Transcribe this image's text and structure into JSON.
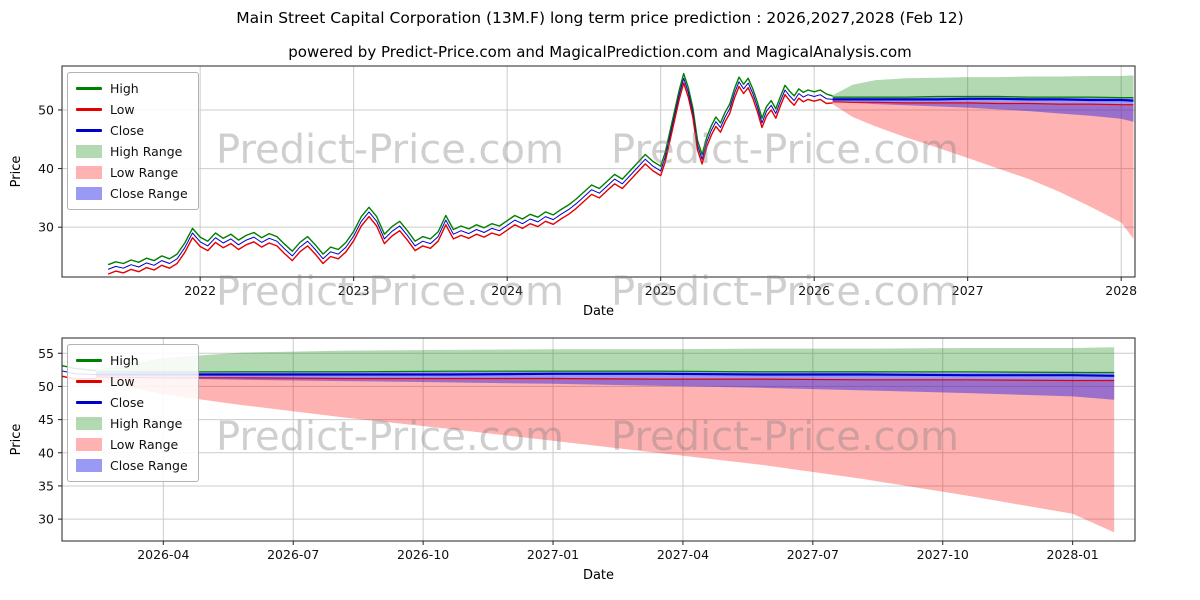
{
  "title": "Main Street Capital Corporation (13M.F) long term price prediction : 2026,2027,2028 (Feb 12)",
  "subtitle": "powered by Predict-Price.com and MagicalPrediction.com and MagicalAnalysis.com",
  "watermark": "Predict-Price.com",
  "colors": {
    "high": "#007f00",
    "low": "#e50000",
    "close": "#0000cd",
    "high_range": "rgba(0,128,0,0.3)",
    "low_range": "rgba(255,0,0,0.3)",
    "close_range": "rgba(30,30,230,0.45)",
    "grid": "#cccccc",
    "axis": "#222222"
  },
  "legend": {
    "items": [
      {
        "label": "High",
        "swatch": "line",
        "color": "#007f00"
      },
      {
        "label": "Low",
        "swatch": "line",
        "color": "#e50000"
      },
      {
        "label": "Close",
        "swatch": "line",
        "color": "#0000cd"
      },
      {
        "label": "High Range",
        "swatch": "patch",
        "color": "rgba(0,128,0,0.3)"
      },
      {
        "label": "Low Range",
        "swatch": "patch",
        "color": "rgba(255,0,0,0.3)"
      },
      {
        "label": "Close Range",
        "swatch": "patch",
        "color": "rgba(30,30,230,0.45)"
      }
    ]
  },
  "chart_data": [
    {
      "type": "line",
      "title": "Historical daily High/Low/Close 2021-2026 plus predicted ranges to 2028",
      "xlabel": "Date",
      "ylabel": "Price",
      "xlim": [
        2021.1,
        2028.09
      ],
      "ylim": [
        21.5,
        57.5
      ],
      "x_ticks": [
        {
          "t": 2022,
          "label": "2022"
        },
        {
          "t": 2023,
          "label": "2023"
        },
        {
          "t": 2024,
          "label": "2024"
        },
        {
          "t": 2025,
          "label": "2025"
        },
        {
          "t": 2026,
          "label": "2026"
        },
        {
          "t": 2027,
          "label": "2027"
        },
        {
          "t": 2028,
          "label": "2028"
        }
      ],
      "y_ticks": [
        30,
        40,
        50
      ],
      "history": {
        "columns": [
          "t",
          "high",
          "low",
          "close"
        ],
        "points": [
          [
            2021.4,
            23.6,
            22.0,
            22.8
          ],
          [
            2021.45,
            24.1,
            22.5,
            23.3
          ],
          [
            2021.5,
            23.8,
            22.2,
            23.0
          ],
          [
            2021.55,
            24.4,
            22.8,
            23.6
          ],
          [
            2021.6,
            24.0,
            22.4,
            23.2
          ],
          [
            2021.65,
            24.7,
            23.1,
            23.9
          ],
          [
            2021.7,
            24.3,
            22.7,
            23.5
          ],
          [
            2021.75,
            25.1,
            23.5,
            24.3
          ],
          [
            2021.8,
            24.6,
            23.0,
            23.8
          ],
          [
            2021.85,
            25.4,
            23.8,
            24.6
          ],
          [
            2021.9,
            27.3,
            25.7,
            26.5
          ],
          [
            2021.95,
            29.8,
            28.2,
            29.0
          ],
          [
            2022.0,
            28.3,
            26.7,
            27.5
          ],
          [
            2022.05,
            27.6,
            26.0,
            26.8
          ],
          [
            2022.1,
            29.0,
            27.4,
            28.2
          ],
          [
            2022.15,
            28.1,
            26.5,
            27.3
          ],
          [
            2022.2,
            28.8,
            27.2,
            28.0
          ],
          [
            2022.25,
            27.8,
            26.2,
            27.0
          ],
          [
            2022.3,
            28.6,
            27.0,
            27.8
          ],
          [
            2022.35,
            29.1,
            27.5,
            28.3
          ],
          [
            2022.4,
            28.2,
            26.6,
            27.4
          ],
          [
            2022.45,
            28.9,
            27.3,
            28.1
          ],
          [
            2022.5,
            28.4,
            26.8,
            27.6
          ],
          [
            2022.55,
            27.1,
            25.5,
            26.3
          ],
          [
            2022.6,
            25.9,
            24.3,
            25.1
          ],
          [
            2022.65,
            27.4,
            25.8,
            26.6
          ],
          [
            2022.7,
            28.4,
            26.8,
            27.6
          ],
          [
            2022.75,
            27.0,
            25.4,
            26.2
          ],
          [
            2022.8,
            25.4,
            23.8,
            24.6
          ],
          [
            2022.85,
            26.6,
            25.0,
            25.8
          ],
          [
            2022.9,
            26.2,
            24.6,
            25.4
          ],
          [
            2022.95,
            27.4,
            25.8,
            26.6
          ],
          [
            2023.0,
            29.3,
            27.7,
            28.5
          ],
          [
            2023.05,
            31.8,
            30.2,
            31.0
          ],
          [
            2023.1,
            33.4,
            31.8,
            32.6
          ],
          [
            2023.15,
            31.8,
            30.2,
            31.0
          ],
          [
            2023.2,
            28.8,
            27.2,
            28.0
          ],
          [
            2023.25,
            30.1,
            28.5,
            29.3
          ],
          [
            2023.3,
            31.0,
            29.4,
            30.2
          ],
          [
            2023.35,
            29.4,
            27.8,
            28.6
          ],
          [
            2023.4,
            27.6,
            26.0,
            26.8
          ],
          [
            2023.45,
            28.4,
            26.8,
            27.6
          ],
          [
            2023.5,
            28.0,
            26.4,
            27.2
          ],
          [
            2023.55,
            29.2,
            27.6,
            28.4
          ],
          [
            2023.6,
            32.0,
            30.4,
            31.2
          ],
          [
            2023.65,
            29.6,
            28.0,
            28.8
          ],
          [
            2023.7,
            30.2,
            28.6,
            29.4
          ],
          [
            2023.75,
            29.7,
            28.1,
            28.9
          ],
          [
            2023.8,
            30.4,
            28.8,
            29.6
          ],
          [
            2023.85,
            29.9,
            28.3,
            29.1
          ],
          [
            2023.9,
            30.6,
            29.0,
            29.8
          ],
          [
            2023.95,
            30.2,
            28.6,
            29.4
          ],
          [
            2024.0,
            31.1,
            29.5,
            30.3
          ],
          [
            2024.05,
            32.0,
            30.4,
            31.2
          ],
          [
            2024.1,
            31.4,
            29.8,
            30.6
          ],
          [
            2024.15,
            32.2,
            30.6,
            31.4
          ],
          [
            2024.2,
            31.7,
            30.1,
            30.9
          ],
          [
            2024.25,
            32.6,
            31.0,
            31.8
          ],
          [
            2024.3,
            32.1,
            30.5,
            31.3
          ],
          [
            2024.35,
            33.0,
            31.4,
            32.2
          ],
          [
            2024.4,
            33.8,
            32.2,
            33.0
          ],
          [
            2024.45,
            34.8,
            33.2,
            34.0
          ],
          [
            2024.5,
            36.0,
            34.4,
            35.2
          ],
          [
            2024.55,
            37.2,
            35.6,
            36.4
          ],
          [
            2024.6,
            36.6,
            35.0,
            35.8
          ],
          [
            2024.65,
            37.8,
            36.2,
            37.0
          ],
          [
            2024.7,
            39.0,
            37.4,
            38.2
          ],
          [
            2024.75,
            38.2,
            36.6,
            37.4
          ],
          [
            2024.8,
            39.6,
            38.0,
            38.8
          ],
          [
            2024.85,
            41.0,
            39.4,
            40.2
          ],
          [
            2024.9,
            42.4,
            40.8,
            41.6
          ],
          [
            2024.95,
            41.2,
            39.6,
            40.4
          ],
          [
            2025.0,
            40.4,
            38.8,
            39.6
          ],
          [
            2025.03,
            42.8,
            41.2,
            42.0
          ],
          [
            2025.06,
            46.3,
            44.7,
            45.5
          ],
          [
            2025.09,
            49.8,
            48.2,
            49.0
          ],
          [
            2025.12,
            53.3,
            51.7,
            52.5
          ],
          [
            2025.15,
            56.2,
            54.6,
            55.4
          ],
          [
            2025.18,
            53.8,
            52.2,
            53.0
          ],
          [
            2025.21,
            50.3,
            48.7,
            49.5
          ],
          [
            2025.24,
            44.8,
            43.2,
            44.0
          ],
          [
            2025.27,
            42.4,
            40.8,
            41.6
          ],
          [
            2025.3,
            45.3,
            43.7,
            44.5
          ],
          [
            2025.33,
            47.3,
            45.7,
            46.5
          ],
          [
            2025.36,
            48.8,
            47.2,
            48.0
          ],
          [
            2025.39,
            47.8,
            46.2,
            47.0
          ],
          [
            2025.42,
            49.6,
            48.0,
            48.8
          ],
          [
            2025.45,
            51.0,
            49.4,
            50.2
          ],
          [
            2025.48,
            53.6,
            52.0,
            52.8
          ],
          [
            2025.51,
            55.6,
            54.0,
            54.8
          ],
          [
            2025.54,
            54.4,
            52.8,
            53.6
          ],
          [
            2025.57,
            55.4,
            53.8,
            54.6
          ],
          [
            2025.6,
            53.6,
            52.0,
            52.8
          ],
          [
            2025.63,
            51.3,
            49.7,
            50.5
          ],
          [
            2025.66,
            48.6,
            47.0,
            47.8
          ],
          [
            2025.69,
            50.6,
            49.0,
            49.8
          ],
          [
            2025.72,
            51.6,
            50.0,
            50.8
          ],
          [
            2025.75,
            50.2,
            48.6,
            49.4
          ],
          [
            2025.78,
            52.3,
            50.7,
            51.5
          ],
          [
            2025.81,
            54.2,
            52.6,
            53.4
          ],
          [
            2025.84,
            53.2,
            51.6,
            52.4
          ],
          [
            2025.87,
            52.4,
            50.8,
            51.6
          ],
          [
            2025.9,
            53.6,
            52.0,
            52.8
          ],
          [
            2025.93,
            53.0,
            51.4,
            52.2
          ],
          [
            2025.96,
            53.4,
            51.8,
            52.6
          ],
          [
            2026.0,
            53.1,
            51.5,
            52.3
          ],
          [
            2026.04,
            53.4,
            51.8,
            52.6
          ],
          [
            2026.08,
            52.7,
            51.1,
            51.9
          ],
          [
            2026.12,
            52.4,
            51.2,
            51.8
          ]
        ]
      },
      "prediction": {
        "t": [
          2026.12,
          2026.25,
          2026.4,
          2026.6,
          2026.8,
          2027.0,
          2027.2,
          2027.4,
          2027.6,
          2027.8,
          2028.0,
          2028.08
        ],
        "high_range_top": [
          52.5,
          54.3,
          55.1,
          55.4,
          55.5,
          55.6,
          55.6,
          55.7,
          55.7,
          55.8,
          55.8,
          55.9
        ],
        "low_range_bottom": [
          51.0,
          48.8,
          47.2,
          45.3,
          43.6,
          41.8,
          40.0,
          38.2,
          36.0,
          33.5,
          30.8,
          28.0
        ],
        "close_range_top": [
          52.1,
          52.2,
          52.3,
          52.3,
          52.3,
          52.4,
          52.4,
          52.3,
          52.3,
          52.2,
          52.2,
          52.1
        ],
        "close_range_bottom": [
          51.4,
          51.2,
          51.0,
          50.8,
          50.6,
          50.4,
          50.1,
          49.8,
          49.4,
          49.0,
          48.5,
          48.0
        ],
        "high": [
          52.2,
          52.2,
          52.2,
          52.2,
          52.3,
          52.3,
          52.3,
          52.2,
          52.2,
          52.2,
          52.1,
          52.1
        ],
        "low": [
          51.4,
          51.3,
          51.3,
          51.2,
          51.2,
          51.2,
          51.1,
          51.1,
          51.0,
          51.0,
          50.9,
          50.9
        ],
        "close": [
          51.8,
          51.8,
          51.8,
          51.8,
          51.8,
          51.9,
          51.9,
          51.8,
          51.8,
          51.7,
          51.7,
          51.6
        ]
      }
    },
    {
      "type": "area",
      "title": "Zoomed view of the 2026-2028 predicted High/Low/Close ranges",
      "xlabel": "Date",
      "ylabel": "Price",
      "xlim": [
        2026.055,
        2028.12
      ],
      "ylim": [
        26.7,
        57.3
      ],
      "x_ticks": [
        {
          "t": 2026.25,
          "label": "2026-04"
        },
        {
          "t": 2026.5,
          "label": "2026-07"
        },
        {
          "t": 2026.75,
          "label": "2026-10"
        },
        {
          "t": 2027.0,
          "label": "2027-01"
        },
        {
          "t": 2027.25,
          "label": "2027-04"
        },
        {
          "t": 2027.5,
          "label": "2027-07"
        },
        {
          "t": 2027.75,
          "label": "2027-10"
        },
        {
          "t": 2028.0,
          "label": "2028-01"
        }
      ],
      "y_ticks": [
        30,
        35,
        40,
        45,
        50,
        55
      ],
      "series_source": "same data as chart_data[0].history and chart_data[0].prediction"
    }
  ]
}
